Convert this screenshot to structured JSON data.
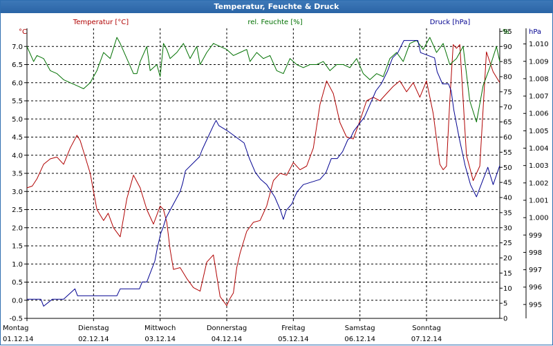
{
  "window": {
    "title": "Temperatur, Feuchte & Druck"
  },
  "chart_data": {
    "type": "line",
    "title": "Temperatur, Feuchte & Druck",
    "x_unit": "days since 01.12.14 00:00",
    "x_range": [
      0,
      7.1
    ],
    "x_ticks": [
      {
        "day": "Montag",
        "date": "01.12.14",
        "x": 0
      },
      {
        "day": "Dienstag",
        "date": "02.12.14",
        "x": 1
      },
      {
        "day": "Mittwoch",
        "date": "03.12.14",
        "x": 2
      },
      {
        "day": "Donnerstag",
        "date": "04.12.14",
        "x": 3
      },
      {
        "day": "Freitag",
        "date": "05.12.14",
        "x": 4
      },
      {
        "day": "Samstag",
        "date": "06.12.14",
        "x": 5
      },
      {
        "day": "Sonntag",
        "date": "07.12.14",
        "x": 6
      }
    ],
    "axes": {
      "temperature": {
        "label": "Temperatur [°C]",
        "unit": "°C",
        "range": [
          -0.5,
          7.5
        ],
        "side": "left",
        "color": "#b00000",
        "ticks": [
          "-0.5",
          "0.0",
          "0.5",
          "1.0",
          "1.5",
          "2.0",
          "2.5",
          "3.0",
          "3.5",
          "4.0",
          "4.5",
          "5.0",
          "5.5",
          "6.0",
          "6.5",
          "7.0"
        ]
      },
      "humidity": {
        "label": "rel. Feuchte [%]",
        "unit": "%",
        "range": [
          0,
          96
        ],
        "side": "right",
        "color": "#007000",
        "ticks": [
          "0",
          "5",
          "10",
          "15",
          "20",
          "25",
          "30",
          "35",
          "40",
          "45",
          "50",
          "55",
          "60",
          "65",
          "70",
          "75",
          "80",
          "85",
          "90",
          "95"
        ]
      },
      "pressure": {
        "label": "Druck [hPa]",
        "unit": "hPa",
        "range": [
          994.2,
          1010.9
        ],
        "side": "right",
        "color": "#000090",
        "ticks": [
          "995",
          "996",
          "997",
          "998",
          "999",
          "1.000",
          "1.001",
          "1.002",
          "1.003",
          "1.004",
          "1.005",
          "1.006",
          "1.007",
          "1.008",
          "1.009",
          "1.010"
        ]
      }
    },
    "series": [
      {
        "name": "Temperatur [°C]",
        "axis": "temperature",
        "color": "#b00000",
        "x": [
          0.0,
          0.08,
          0.15,
          0.25,
          0.35,
          0.45,
          0.55,
          0.65,
          0.75,
          0.8,
          0.85,
          0.95,
          1.05,
          1.15,
          1.22,
          1.3,
          1.4,
          1.5,
          1.6,
          1.7,
          1.8,
          1.9,
          2.0,
          2.05,
          2.1,
          2.15,
          2.2,
          2.3,
          2.4,
          2.5,
          2.6,
          2.7,
          2.8,
          2.9,
          3.0,
          3.05,
          3.1,
          3.15,
          3.2,
          3.3,
          3.4,
          3.5,
          3.6,
          3.7,
          3.8,
          3.9,
          4.0,
          4.1,
          4.2,
          4.3,
          4.4,
          4.5,
          4.6,
          4.7,
          4.8,
          4.9,
          5.0,
          5.1,
          5.2,
          5.3,
          5.4,
          5.5,
          5.6,
          5.7,
          5.8,
          5.9,
          6.0,
          6.1,
          6.2,
          6.25,
          6.3,
          6.35,
          6.4,
          6.45,
          6.5,
          6.6,
          6.7,
          6.8,
          6.9,
          7.0,
          7.1
        ],
        "y": [
          3.1,
          3.15,
          3.35,
          3.75,
          3.9,
          3.95,
          3.75,
          4.2,
          4.55,
          4.4,
          4.1,
          3.5,
          2.5,
          2.2,
          2.4,
          2.0,
          1.75,
          2.8,
          3.45,
          3.1,
          2.5,
          2.1,
          2.6,
          2.5,
          2.15,
          1.4,
          0.85,
          0.9,
          0.6,
          0.35,
          0.25,
          1.05,
          1.25,
          0.1,
          -0.15,
          0.05,
          0.2,
          0.9,
          1.3,
          1.9,
          2.15,
          2.2,
          2.6,
          3.3,
          3.5,
          3.45,
          3.8,
          3.6,
          3.7,
          4.2,
          5.4,
          6.05,
          5.7,
          4.9,
          4.5,
          4.45,
          4.95,
          5.5,
          5.6,
          5.5,
          5.7,
          5.9,
          6.05,
          5.75,
          6.0,
          5.6,
          6.05,
          5.15,
          3.75,
          3.6,
          3.7,
          5.5,
          7.05,
          6.95,
          7.05,
          4.0,
          3.3,
          3.7,
          6.85,
          6.3,
          6.0
        ]
      },
      {
        "name": "rel. Feuchte [%]",
        "axis": "humidity",
        "color": "#007000",
        "x": [
          0.0,
          0.1,
          0.15,
          0.25,
          0.35,
          0.45,
          0.55,
          0.65,
          0.75,
          0.85,
          0.95,
          1.0,
          1.05,
          1.1,
          1.15,
          1.25,
          1.35,
          1.4,
          1.5,
          1.6,
          1.65,
          1.7,
          1.8,
          1.85,
          1.9,
          1.95,
          2.0,
          2.05,
          2.1,
          2.15,
          2.25,
          2.35,
          2.45,
          2.55,
          2.6,
          2.7,
          2.8,
          2.9,
          3.0,
          3.1,
          3.2,
          3.3,
          3.35,
          3.45,
          3.55,
          3.65,
          3.75,
          3.85,
          3.95,
          4.05,
          4.15,
          4.25,
          4.35,
          4.45,
          4.55,
          4.65,
          4.75,
          4.85,
          4.95,
          5.05,
          5.15,
          5.25,
          5.35,
          5.45,
          5.55,
          5.65,
          5.75,
          5.85,
          5.95,
          6.05,
          6.15,
          6.25,
          6.35,
          6.45,
          6.55,
          6.65,
          6.75,
          6.85,
          6.95,
          7.05,
          7.1
        ],
        "y": [
          90,
          85,
          87,
          86,
          82,
          81,
          79,
          78,
          77,
          76,
          78,
          80,
          82,
          85,
          88,
          86,
          93,
          91,
          86,
          81,
          81,
          85,
          90,
          82,
          83,
          84,
          80,
          91,
          89,
          86,
          88,
          91,
          86,
          90,
          84,
          88,
          91,
          90,
          89,
          87,
          88,
          89,
          85,
          88,
          86,
          87,
          82,
          81,
          86,
          84,
          83,
          84,
          84,
          85,
          82,
          84,
          84,
          83,
          86,
          81,
          79,
          81,
          80,
          86,
          88,
          85,
          91,
          92,
          89,
          93,
          88,
          91,
          84,
          86,
          90,
          72,
          65,
          77,
          83,
          90,
          85
        ]
      },
      {
        "name": "Druck [hPa]",
        "axis": "pressure",
        "color": "#000090",
        "x": [
          0.0,
          0.17,
          0.21,
          0.25,
          0.38,
          0.46,
          0.55,
          0.72,
          0.76,
          0.8,
          0.84,
          0.93,
          0.97,
          1.3,
          1.35,
          1.4,
          1.48,
          1.6,
          1.69,
          1.73,
          1.76,
          1.8,
          1.84,
          1.92,
          1.96,
          2.01,
          2.05,
          2.09,
          2.3,
          2.34,
          2.38,
          2.59,
          2.63,
          2.8,
          2.84,
          2.88,
          3.01,
          3.26,
          3.34,
          3.43,
          3.51,
          3.6,
          3.72,
          3.81,
          3.85,
          3.89,
          3.98,
          4.02,
          4.06,
          4.15,
          4.4,
          4.49,
          4.57,
          4.66,
          4.74,
          4.82,
          4.86,
          4.91,
          4.99,
          5.07,
          5.15,
          5.24,
          5.32,
          5.41,
          5.49,
          5.57,
          5.66,
          5.74,
          5.87,
          5.91,
          6.12,
          6.16,
          6.24,
          6.33,
          6.37,
          6.41,
          6.49,
          6.58,
          6.66,
          6.75,
          6.83,
          6.92,
          7.0,
          7.1
        ],
        "y": [
          995.3,
          995.3,
          995.3,
          994.9,
          995.3,
          995.3,
          995.3,
          995.9,
          995.5,
          995.5,
          995.5,
          995.5,
          995.5,
          995.5,
          995.5,
          995.9,
          995.9,
          995.9,
          995.9,
          996.3,
          996.3,
          996.3,
          996.7,
          997.5,
          998.3,
          999.1,
          999.5,
          1000.0,
          1001.5,
          1002.0,
          1002.7,
          1003.5,
          1003.9,
          1005.3,
          1005.6,
          1005.3,
          1005.0,
          1004.3,
          1003.4,
          1002.6,
          1002.2,
          1001.9,
          1001.2,
          1000.4,
          999.9,
          1000.4,
          1000.8,
          1001.2,
          1001.5,
          1001.9,
          1002.2,
          1002.6,
          1003.4,
          1003.4,
          1003.8,
          1004.5,
          1004.6,
          1005.0,
          1005.4,
          1005.8,
          1006.5,
          1007.3,
          1007.7,
          1008.4,
          1009.2,
          1009.5,
          1010.2,
          1010.2,
          1010.2,
          1009.5,
          1009.2,
          1008.4,
          1007.7,
          1007.7,
          1007.3,
          1006.2,
          1004.6,
          1003.0,
          1001.9,
          1001.2,
          1002.0,
          1002.9,
          1001.9,
          1003.0
        ]
      }
    ],
    "grid": true,
    "legend": "top"
  }
}
